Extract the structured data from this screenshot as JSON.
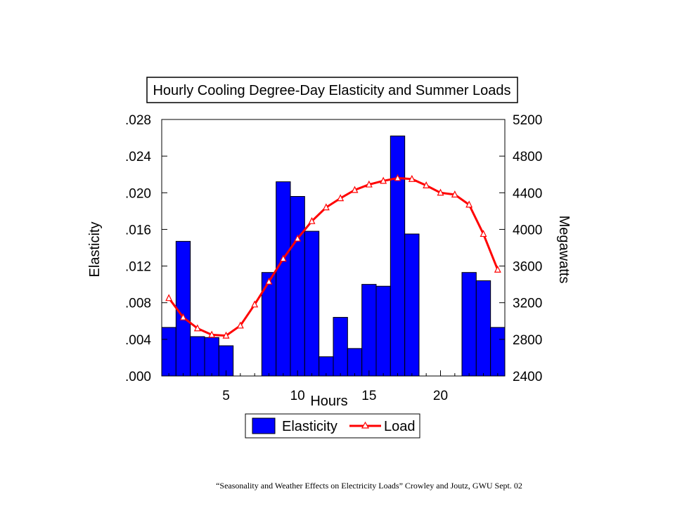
{
  "caption": "“Seasonality and Weather Effects on Electricity  Loads” Crowley  and Joutz, GWU Sept. 02",
  "chart_data": {
    "type": "bar",
    "title": "Hourly Cooling Degree-Day Elasticity and Summer Loads",
    "xlabel": "Hours",
    "ylabel": "Elasticity",
    "y2label": "Megawatts",
    "x": [
      1,
      2,
      3,
      4,
      5,
      6,
      7,
      8,
      9,
      10,
      11,
      12,
      13,
      14,
      15,
      16,
      17,
      18,
      19,
      20,
      21,
      22,
      23,
      24
    ],
    "xlim": [
      0.5,
      24.5
    ],
    "xticks": [
      5,
      10,
      15,
      20
    ],
    "xtick_labels": [
      "5",
      "10",
      "15",
      "20"
    ],
    "ylim": [
      0,
      0.028
    ],
    "yticks": [
      0,
      0.004,
      0.008,
      0.012,
      0.016,
      0.02,
      0.024,
      0.028
    ],
    "ytick_labels": [
      ".000",
      ".004",
      ".008",
      ".012",
      ".016",
      ".020",
      ".024",
      ".028"
    ],
    "y2lim": [
      2400,
      5200
    ],
    "y2ticks": [
      2400,
      2800,
      3200,
      3600,
      4000,
      4400,
      4800,
      5200
    ],
    "y2tick_labels": [
      "2400",
      "2800",
      "3200",
      "3600",
      "4000",
      "4400",
      "4800",
      "5200"
    ],
    "series": [
      {
        "name": "Elasticity",
        "type": "bar",
        "axis": "left",
        "color": "#0000ff",
        "values": [
          0.0053,
          0.0147,
          0.0043,
          0.0042,
          0.0033,
          0,
          0,
          0.0113,
          0.0212,
          0.0196,
          0.0158,
          0.0021,
          0.0064,
          0.003,
          0.01,
          0.0098,
          0.0262,
          0.0155,
          0,
          0,
          0,
          0.0113,
          0.0104,
          0.0053
        ]
      },
      {
        "name": "Load",
        "type": "line",
        "axis": "right",
        "color": "#ff0000",
        "marker": "triangle",
        "values": [
          3250,
          3040,
          2920,
          2850,
          2840,
          2950,
          3180,
          3430,
          3680,
          3900,
          4090,
          4240,
          4340,
          4430,
          4490,
          4530,
          4560,
          4550,
          4480,
          4400,
          4380,
          4270,
          3950,
          3560
        ]
      }
    ],
    "legend_position": "bottom",
    "grid": false
  }
}
